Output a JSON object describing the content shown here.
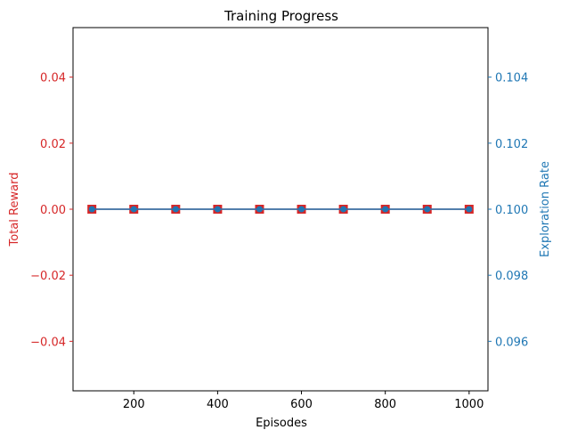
{
  "chart_data": {
    "type": "line",
    "title": "Training Progress",
    "xlabel": "Episodes",
    "x": [
      100,
      200,
      300,
      400,
      500,
      600,
      700,
      800,
      900,
      1000
    ],
    "xlim": [
      55,
      1045
    ],
    "xticks": [
      200,
      400,
      600,
      800,
      1000
    ],
    "series": [
      {
        "axis": "left",
        "marker": "square",
        "color": "#d62728",
        "values": [
          0,
          0,
          0,
          0,
          0,
          0,
          0,
          0,
          0,
          0
        ]
      },
      {
        "axis": "right",
        "marker": "circle",
        "color": "#1f77b4",
        "values": [
          0.1,
          0.1,
          0.1,
          0.1,
          0.1,
          0.1,
          0.1,
          0.1,
          0.1,
          0.1
        ]
      }
    ],
    "left_axis": {
      "label": "Total Reward",
      "color": "#d62728",
      "ylim": [
        -0.055,
        0.055
      ],
      "ticks": [
        0.04,
        0.02,
        0.0,
        -0.02,
        -0.04
      ],
      "tick_labels": [
        "0.04",
        "0.02",
        "0.00",
        "−0.02",
        "−0.04"
      ]
    },
    "right_axis": {
      "label": "Exploration Rate",
      "color": "#1f77b4",
      "ylim": [
        0.0945,
        0.1055
      ],
      "ticks": [
        0.104,
        0.102,
        0.1,
        0.098,
        0.096
      ],
      "tick_labels": [
        "0.104",
        "0.102",
        "0.100",
        "0.098",
        "0.096"
      ]
    },
    "grid": false,
    "legend": false
  }
}
